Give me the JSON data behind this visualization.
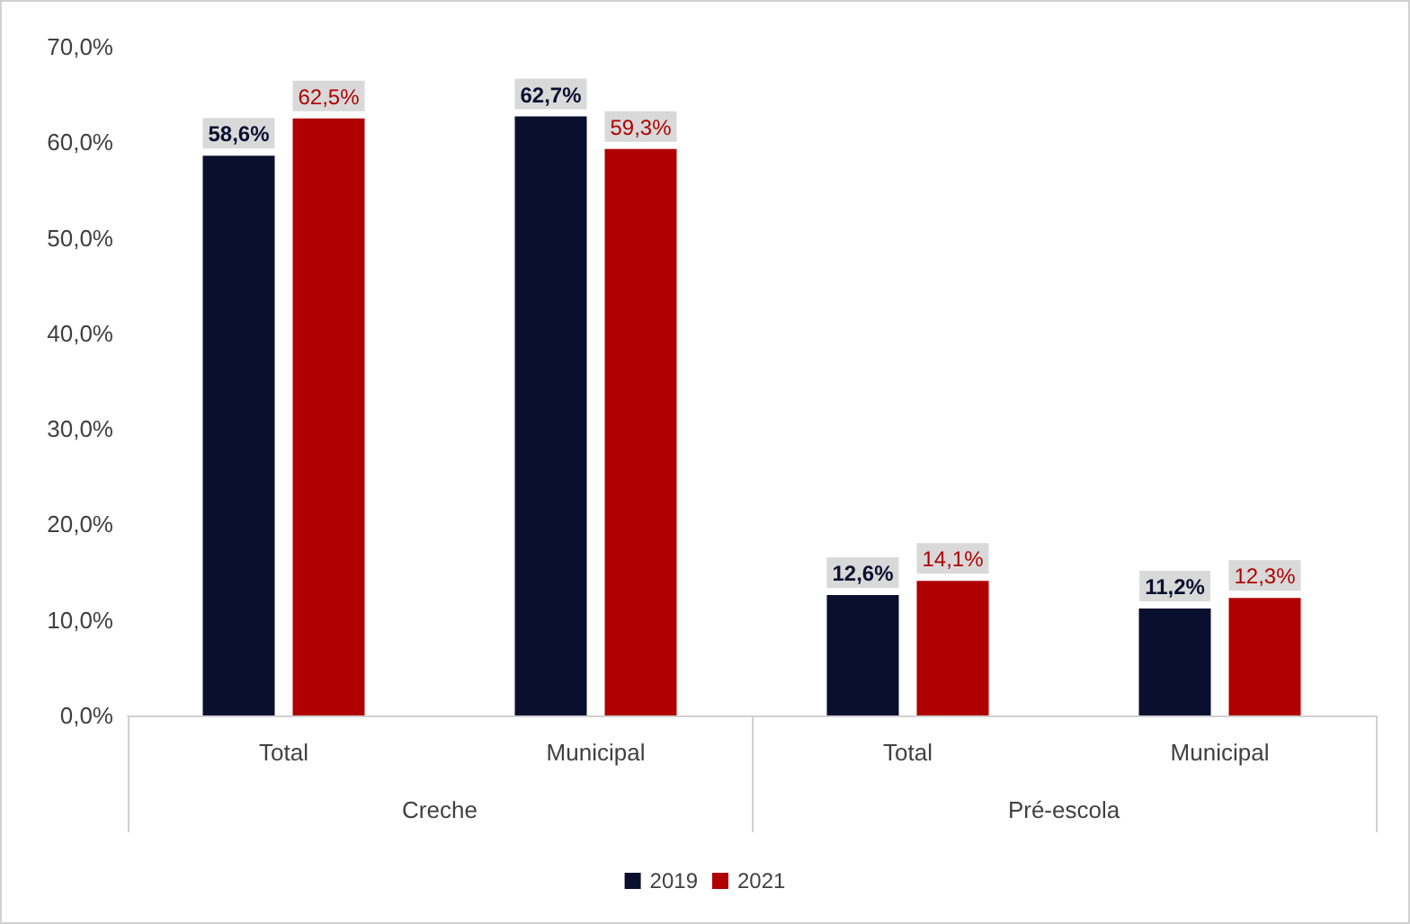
{
  "chart_data": {
    "type": "bar",
    "categories": [
      "Total",
      "Municipal",
      "Total",
      "Municipal"
    ],
    "series": [
      {
        "name": "2019",
        "color": "#0b0f2f",
        "values": [
          58.6,
          62.7,
          12.6,
          11.2
        ],
        "value_labels": [
          "58,6%",
          "62,7%",
          "12,6%",
          "11,2%"
        ]
      },
      {
        "name": "2021",
        "color": "#b00000",
        "values": [
          62.5,
          59.3,
          14.1,
          12.3
        ],
        "value_labels": [
          "62,5%",
          "59,3%",
          "14,1%",
          "12,3%"
        ]
      }
    ],
    "annotations": [
      "Creche",
      "Pré-escola"
    ],
    "ylim": [
      0,
      70
    ],
    "yticks": [
      {
        "value": 0,
        "label": "0,0%"
      },
      {
        "value": 10,
        "label": "10,0%"
      },
      {
        "value": 20,
        "label": "20,0%"
      },
      {
        "value": 30,
        "label": "30,0%"
      },
      {
        "value": 40,
        "label": "40,0%"
      },
      {
        "value": 50,
        "label": "50,0%"
      },
      {
        "value": 60,
        "label": "60,0%"
      },
      {
        "value": 70,
        "label": "70,0%"
      }
    ],
    "grid": false,
    "legend": "bottom"
  }
}
